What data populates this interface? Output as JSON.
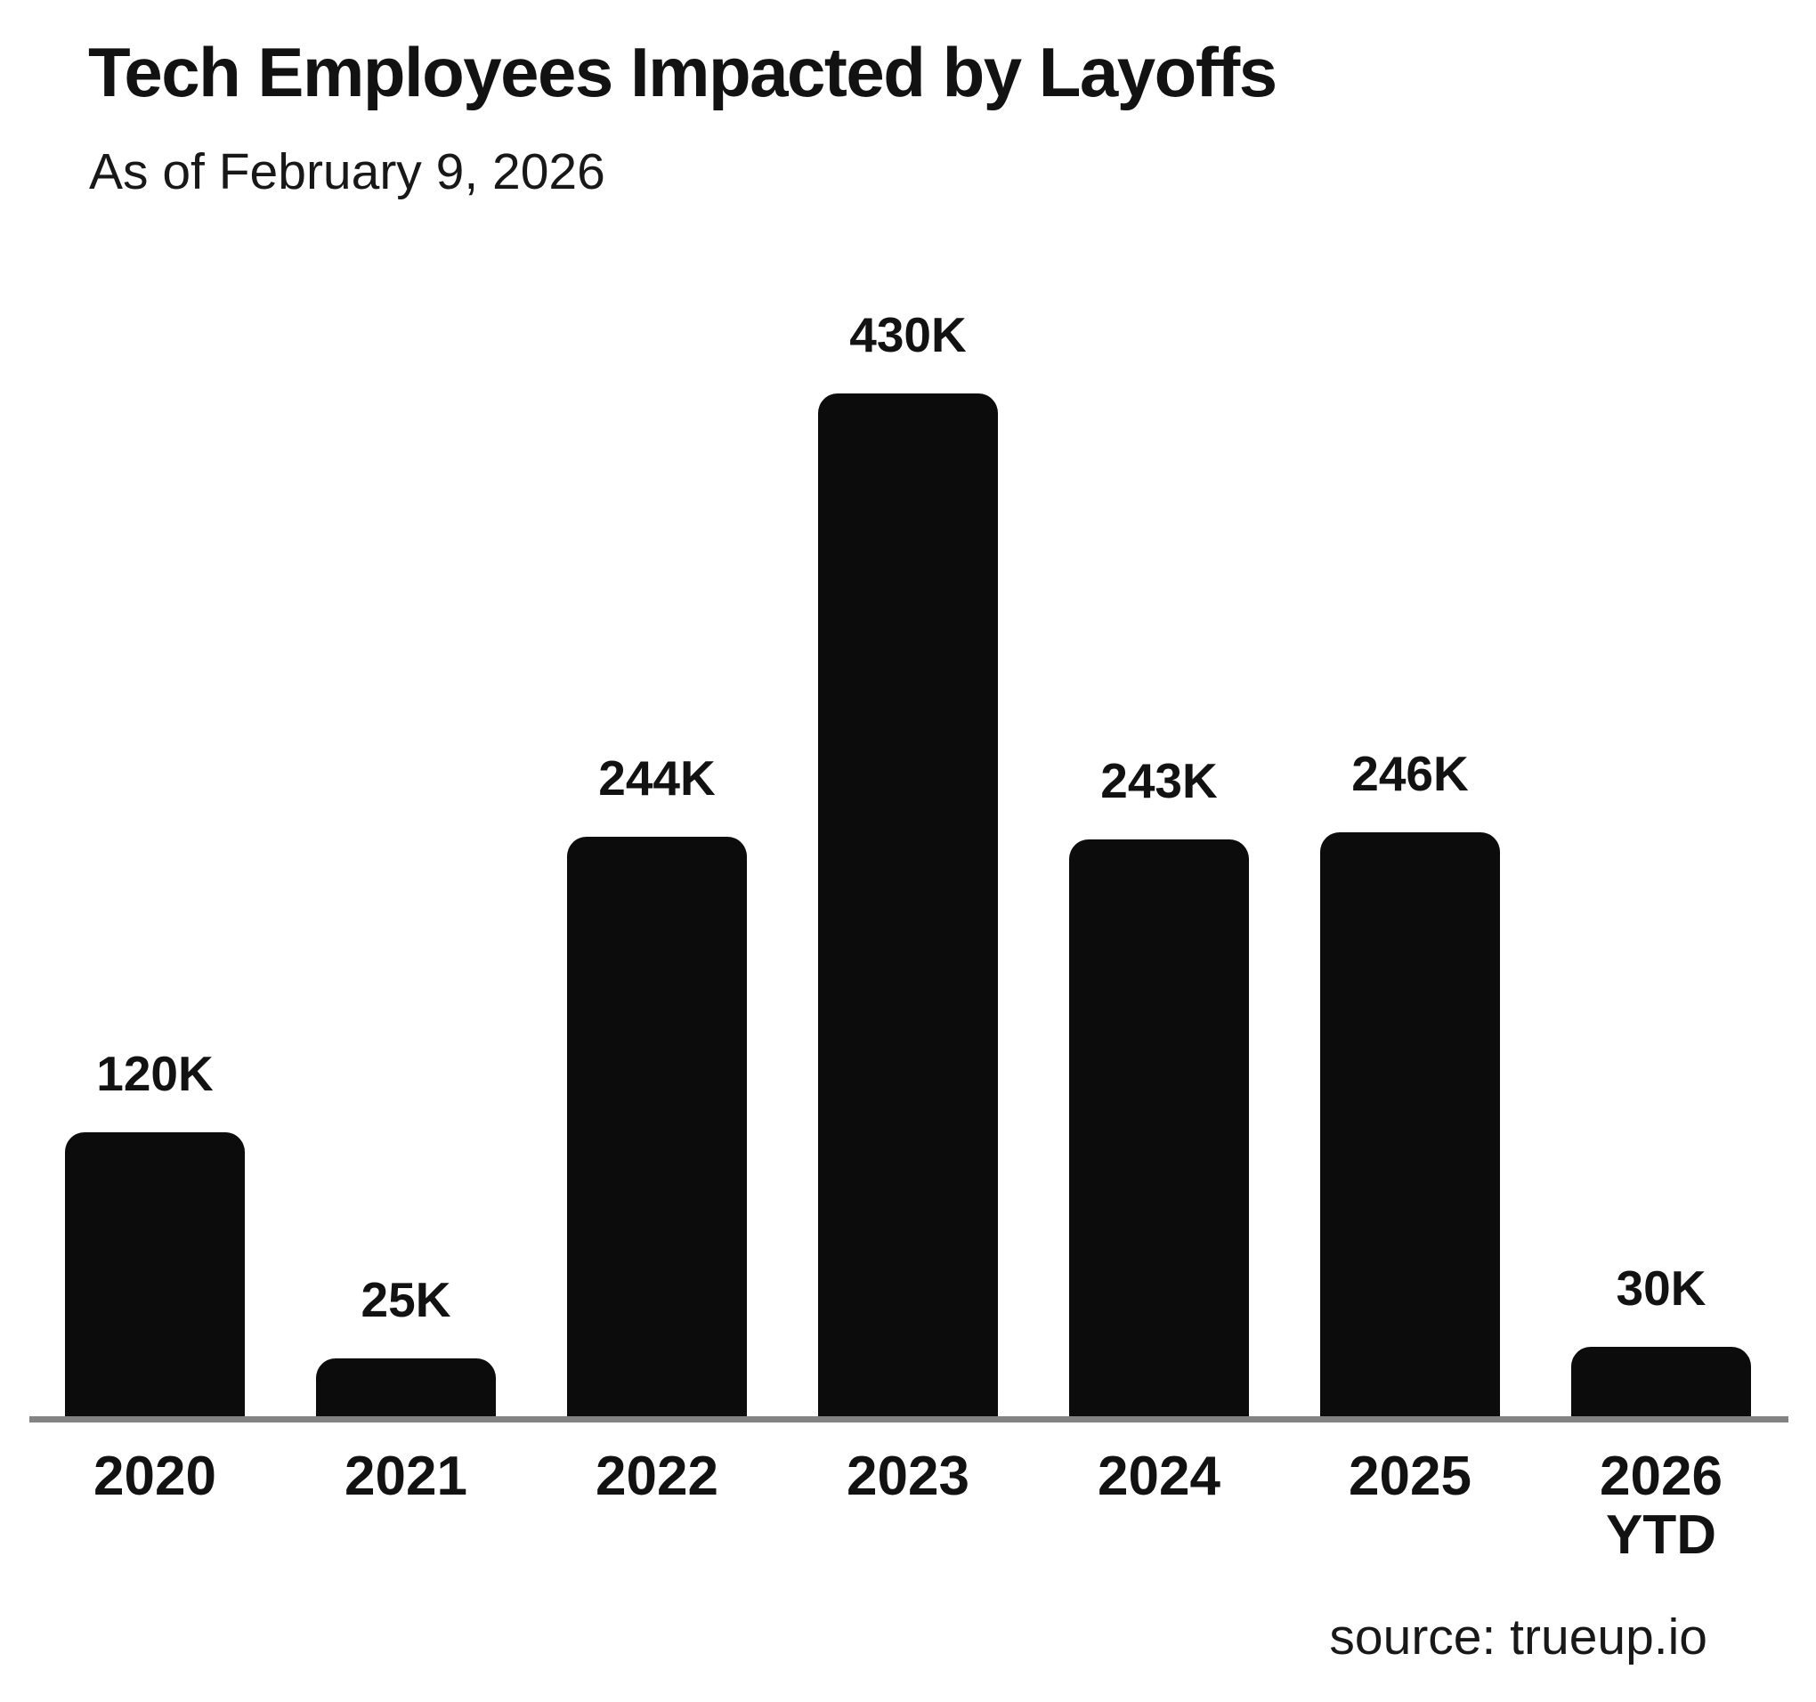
{
  "header": {
    "title": "Tech Employees Impacted by Layoffs",
    "subtitle": "As of February 9, 2026"
  },
  "footer": {
    "source": "source: trueup.io"
  },
  "chart_data": {
    "type": "bar",
    "title": "Tech Employees Impacted by Layoffs",
    "subtitle": "As of February 9, 2026",
    "categories": [
      "2020",
      "2021",
      "2022",
      "2023",
      "2024",
      "2025",
      "2026 YTD"
    ],
    "tick_lines": [
      [
        "2020"
      ],
      [
        "2021"
      ],
      [
        "2022"
      ],
      [
        "2023"
      ],
      [
        "2024"
      ],
      [
        "2025"
      ],
      [
        "2026",
        "YTD"
      ]
    ],
    "values_thousands": [
      120,
      25,
      244,
      430,
      243,
      246,
      30
    ],
    "data_labels": [
      "120K",
      "25K",
      "244K",
      "430K",
      "243K",
      "246K",
      "30K"
    ],
    "xlabel": "",
    "ylabel": "",
    "ylim": [
      0,
      430
    ],
    "grid": false,
    "legend": false,
    "bar_color": "#0c0c0c",
    "axis_line_color": "#838383",
    "source": "source: trueup.io"
  }
}
